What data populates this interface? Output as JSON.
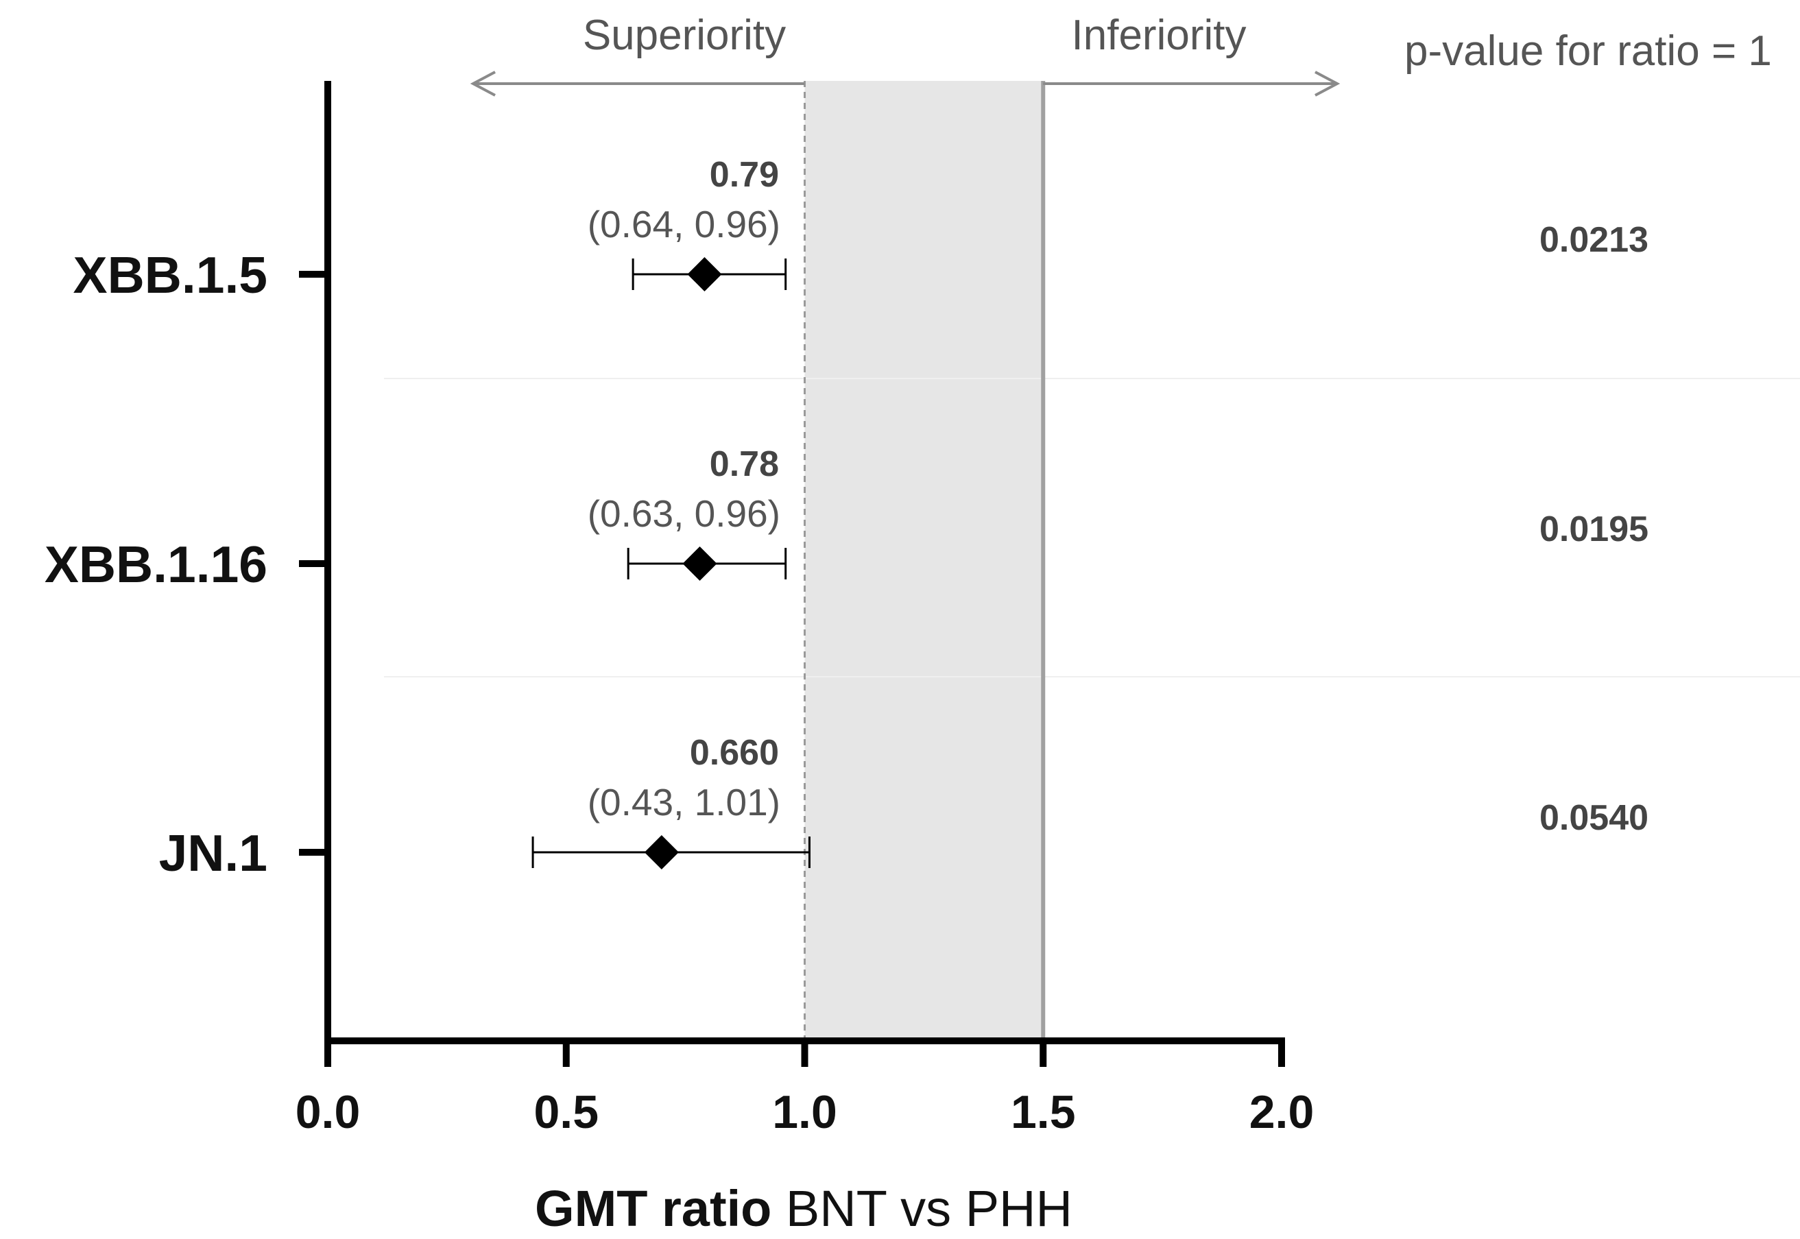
{
  "chart_data": {
    "type": "forest",
    "xlabel_bold": "GMT ratio",
    "xlabel_rest": " BNT vs PHH",
    "xlim": [
      0,
      2
    ],
    "xticks": [
      "0.0",
      "0.5",
      "1.0",
      "1.5",
      "2.0"
    ],
    "xtick_values": [
      0,
      0.5,
      1.0,
      1.5,
      2.0
    ],
    "reference_line": 1.0,
    "noninferiority_margin": 1.5,
    "shaded_region": [
      1.0,
      1.5
    ],
    "direction_left": "Superiority",
    "direction_right": "Inferiority",
    "pvalue_header": "p-value for ratio = 1",
    "rows": [
      {
        "category": "XBB.1.5",
        "estimate": 0.79,
        "ci_low": 0.64,
        "ci_high": 0.96,
        "estimate_label": "0.79",
        "ci_label": "(0.64, 0.96)",
        "p_value": "0.0213"
      },
      {
        "category": "XBB.1.16",
        "estimate": 0.78,
        "ci_low": 0.63,
        "ci_high": 0.96,
        "estimate_label": "0.78",
        "ci_label": "(0.63, 0.96)",
        "p_value": "0.0195"
      },
      {
        "category": "JN.1",
        "estimate": 0.7,
        "ci_low": 0.43,
        "ci_high": 1.01,
        "estimate_label": "0.660",
        "ci_label": "(0.43, 1.01)",
        "p_value": "0.0540"
      }
    ]
  }
}
